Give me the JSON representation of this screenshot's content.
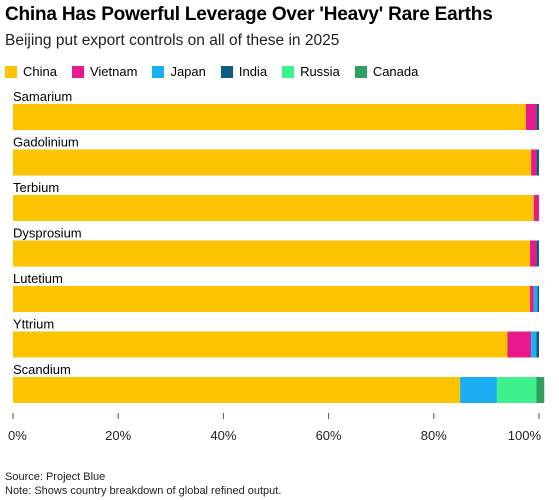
{
  "header": {
    "title": "China Has Powerful Leverage Over 'Heavy' Rare Earths",
    "subtitle": "Beijing put export controls on all of these in 2025"
  },
  "legend": [
    {
      "name": "China",
      "color": "#FBC300"
    },
    {
      "name": "Vietnam",
      "color": "#E8198A"
    },
    {
      "name": "Japan",
      "color": "#1BAEF0"
    },
    {
      "name": "India",
      "color": "#0E5C82"
    },
    {
      "name": "Russia",
      "color": "#3EF08E"
    },
    {
      "name": "Canada",
      "color": "#2F9E5E"
    }
  ],
  "chart_data": {
    "type": "bar",
    "orientation": "horizontal",
    "stacked": true,
    "categories": [
      "Samarium",
      "Gadolinium",
      "Terbium",
      "Dysprosium",
      "Lutetium",
      "Yttrium",
      "Scandium"
    ],
    "series": [
      {
        "name": "China",
        "color": "#FBC300",
        "values": [
          97.5,
          98.5,
          99,
          98.3,
          98.3,
          94,
          85
        ]
      },
      {
        "name": "Vietnam",
        "color": "#E8198A",
        "values": [
          2,
          1,
          1,
          1.2,
          0.7,
          4.5,
          0
        ]
      },
      {
        "name": "Japan",
        "color": "#1BAEF0",
        "values": [
          0,
          0,
          0,
          0,
          0.7,
          1,
          7
        ]
      },
      {
        "name": "India",
        "color": "#0E5C82",
        "values": [
          0.5,
          0.5,
          0,
          0.5,
          0.3,
          0.5,
          0
        ]
      },
      {
        "name": "Russia",
        "color": "#3EF08E",
        "values": [
          0,
          0,
          0,
          0,
          0,
          0,
          7.5
        ]
      },
      {
        "name": "Canada",
        "color": "#2F9E5E",
        "values": [
          0,
          0,
          0,
          0,
          0,
          0,
          1.5
        ]
      }
    ],
    "xlim": [
      0,
      100
    ],
    "xticks": [
      "0%",
      "20%",
      "40%",
      "60%",
      "80%",
      "100%"
    ],
    "grid": false,
    "legend_position": "top-left"
  },
  "footer": {
    "source": "Source: Project Blue",
    "note": "Note: Shows country breakdown of global refined output."
  }
}
